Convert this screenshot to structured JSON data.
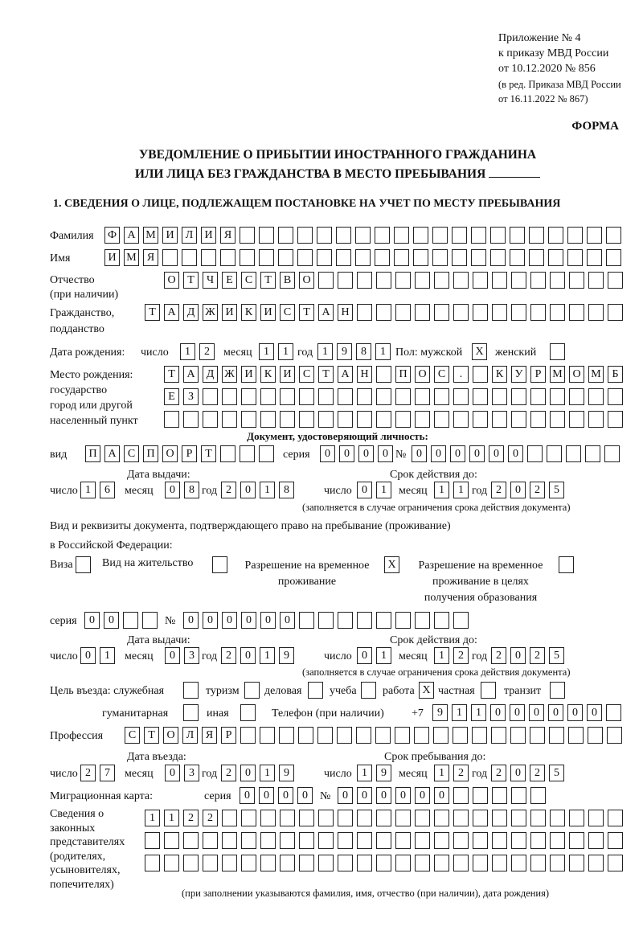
{
  "header": {
    "appendix": [
      "Приложение № 4",
      "к приказу МВД России",
      "от 10.12.2020 № 856"
    ],
    "edition": [
      "(в ред. Приказа МВД России",
      "от 16.11.2022 № 867)"
    ],
    "form_label": "ФОРМА",
    "title_line1": "УВЕДОМЛЕНИЕ О ПРИБЫТИИ ИНОСТРАННОГО ГРАЖДАНИНА",
    "title_line2": "ИЛИ ЛИЦА БЕЗ ГРАЖДАНСТВА В МЕСТО ПРЕБЫВАНИЯ",
    "section1": "1. СВЕДЕНИЯ О ЛИЦЕ, ПОДЛЕЖАЩЕМ ПОСТАНОВКЕ НА УЧЕТ ПО МЕСТУ ПРЕБЫВАНИЯ"
  },
  "labels": {
    "surname": "Фамилия",
    "name": "Имя",
    "patronymic": "Отчество",
    "patronymic2": "(при наличии)",
    "citizenship": "Гражданство,",
    "citizenship2": "подданство",
    "birth_date": "Дата рождения:",
    "day": "число",
    "month": "месяц",
    "year": "год",
    "sex": "Пол: мужской",
    "female": "женский",
    "birth_place": [
      "Место рождения:",
      "государство",
      "город или другой",
      "населенный пункт"
    ],
    "id_doc": "Документ, удостоверяющий личность:",
    "kind": "вид",
    "series": "серия",
    "number": "№",
    "issue_date": "Дата выдачи:",
    "valid_until": "Срок действия до:",
    "validity_note": "(заполняется в случае ограничения срока действия документа)",
    "permit_doc1": "Вид и реквизиты документа, подтверждающего право на пребывание (проживание)",
    "permit_doc2": "в Российской Федерации:",
    "visa": "Виза",
    "residence": "Вид на жительство",
    "temp_res": [
      "Разрешение на временное",
      "проживание"
    ],
    "temp_res_edu": [
      "Разрешение на временное",
      "проживание в целях",
      "получения образования"
    ],
    "purpose": "Цель въезда: служебная",
    "tourism": "туризм",
    "business": "деловая",
    "study": "учеба",
    "work": "работа",
    "private": "частная",
    "transit": "транзит",
    "humanitarian": "гуманитарная",
    "other": "иная",
    "phone": "Телефон (при наличии)",
    "phone_prefix": "+7",
    "profession": "Профессия",
    "entry_date": "Дата въезда:",
    "stay_until": "Срок пребывания до:",
    "migration_card": "Миграционная карта:",
    "legal_reps": [
      "Сведения о",
      "законных",
      "представителях",
      "(родителях,",
      "усыновителях,",
      "попечителях)"
    ],
    "legal_reps_note": "(при заполнении указываются фамилия, имя, отчество (при наличии), дата рождения)"
  },
  "values": {
    "surname": "ФАМИЛИЯ",
    "name": "ИМЯ",
    "patronymic": "ОТЧЕСТВО",
    "citizenship": "ТАДЖИКИСТАН",
    "birth_day": "12",
    "birth_month": "11",
    "birth_year": "1981",
    "sex_male": "X",
    "sex_female": "",
    "birth_place1": "ТАДЖИКИСТАН ПОС. КУРМОМБ",
    "birth_place2": "ЕЗ",
    "birth_place3": "",
    "id_kind": "ПАСПОРТ",
    "id_series": "0000",
    "id_number": "000000",
    "id_issue_day": "16",
    "id_issue_month": "08",
    "id_issue_year": "2018",
    "id_valid_day": "01",
    "id_valid_month": "11",
    "id_valid_year": "2025",
    "visa": "",
    "residence": "",
    "temp_res": "X",
    "temp_res_edu": "",
    "permit_series": "00",
    "permit_number": "000000",
    "permit_issue_day": "01",
    "permit_issue_month": "03",
    "permit_issue_year": "2019",
    "permit_valid_day": "01",
    "permit_valid_month": "12",
    "permit_valid_year": "2025",
    "purpose_official": "",
    "purpose_tourism": "",
    "purpose_business": "",
    "purpose_study": "",
    "purpose_work": "X",
    "purpose_private": "",
    "purpose_transit": "",
    "purpose_humanitarian": "",
    "purpose_other": "",
    "phone": "911000000",
    "profession": "СТОЛЯР",
    "entry_day": "27",
    "entry_month": "03",
    "entry_year": "2019",
    "stay_day": "19",
    "stay_month": "12",
    "stay_year": "2025",
    "mig_series": "0000",
    "mig_number": "000000",
    "reps1": "1122",
    "reps2": "",
    "reps3": ""
  }
}
